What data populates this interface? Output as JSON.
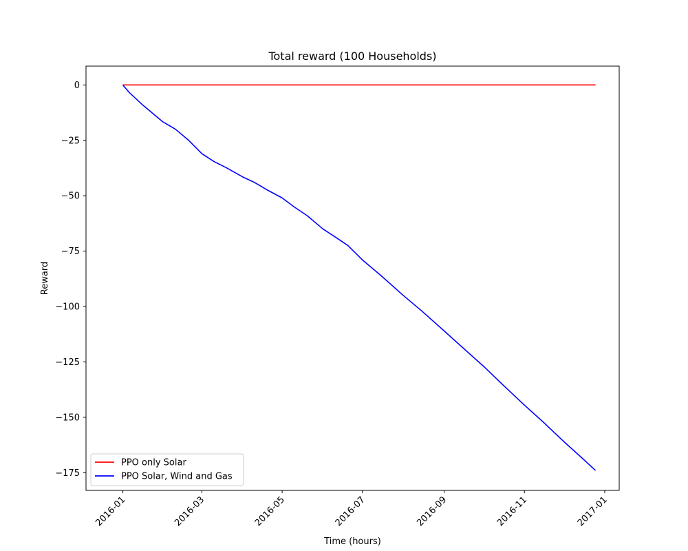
{
  "chart_data": {
    "type": "line",
    "title": "Total reward (100 Households)",
    "xlabel": "Time (hours)",
    "ylabel": "Reward",
    "x_axis_type": "date",
    "xlim": [
      "2015-12-04",
      "2017-01-12"
    ],
    "ylim": [
      -183,
      8.5
    ],
    "x_ticks": [
      "2016-01",
      "2016-03",
      "2016-05",
      "2016-07",
      "2016-09",
      "2016-11",
      "2017-01"
    ],
    "y_ticks": [
      0,
      -25,
      -50,
      -75,
      -100,
      -125,
      -150,
      -175
    ],
    "y_tick_labels": [
      "0",
      "−25",
      "−50",
      "−75",
      "−100",
      "−125",
      "−150",
      "−175"
    ],
    "grid": false,
    "legend_position": "lower-left",
    "series": [
      {
        "name": "PPO only Solar",
        "color": "#ff0000",
        "x": [
          "2016-01-01",
          "2016-12-25"
        ],
        "y": [
          0,
          0
        ]
      },
      {
        "name": "PPO Solar, Wind and Gas",
        "color": "#0000ff",
        "x": [
          "2016-01-01",
          "2016-01-06",
          "2016-01-16",
          "2016-01-31",
          "2016-02-10",
          "2016-02-20",
          "2016-03-01",
          "2016-03-10",
          "2016-03-20",
          "2016-04-01",
          "2016-04-10",
          "2016-04-20",
          "2016-05-01",
          "2016-05-10",
          "2016-05-20",
          "2016-06-01",
          "2016-06-10",
          "2016-06-20",
          "2016-07-01",
          "2016-07-15",
          "2016-08-01",
          "2016-08-15",
          "2016-09-01",
          "2016-09-15",
          "2016-10-01",
          "2016-10-15",
          "2016-11-01",
          "2016-11-15",
          "2016-12-01",
          "2016-12-15",
          "2016-12-25"
        ],
        "y": [
          0,
          -3.5,
          -9,
          -16.5,
          -20,
          -25,
          -31,
          -34.5,
          -37.5,
          -41.5,
          -44,
          -47.5,
          -51,
          -55,
          -59,
          -65,
          -68.5,
          -72.5,
          -79,
          -86,
          -95,
          -102,
          -111,
          -118.5,
          -127,
          -135,
          -144.5,
          -152,
          -161,
          -168.5,
          -174
        ]
      }
    ]
  }
}
